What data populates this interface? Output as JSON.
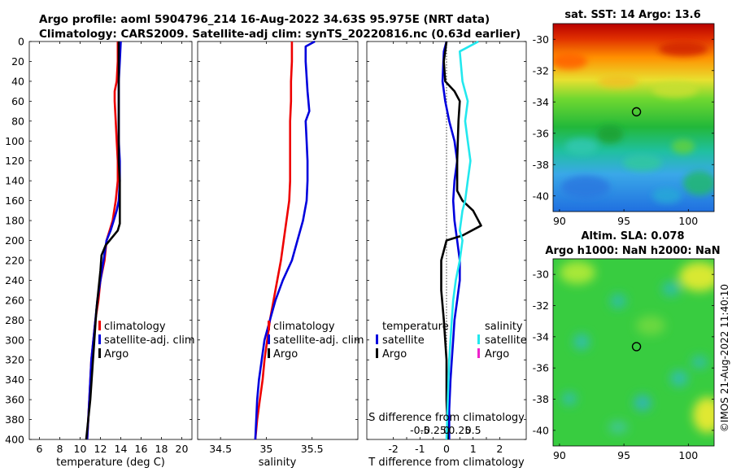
{
  "header": {
    "line1": "Argo profile: aoml 5904796_214 16-Aug-2022 34.63S 95.975E (NRT data)",
    "line2": "Climatology: CARS2009. Satellite-adj clim: synTS_20220816.nc (0.63d earlier)"
  },
  "colors": {
    "climatology": "#ee0000",
    "satellite": "#0000dd",
    "argo": "#000000",
    "salinity_satellite": "#22e8ee",
    "salinity_argo": "#ee22cc"
  },
  "depth_axis": {
    "ticks": [
      "0",
      "20",
      "40",
      "60",
      "80",
      "100",
      "120",
      "140",
      "160",
      "180",
      "200",
      "220",
      "240",
      "260",
      "280",
      "300",
      "320",
      "340",
      "360",
      "380",
      "400"
    ]
  },
  "chart_data": [
    {
      "id": "temperature",
      "type": "line",
      "xlabel": "temperature (deg C)",
      "ylabel": "depth",
      "xlim": [
        5,
        21
      ],
      "ylim": [
        400,
        0
      ],
      "xticks": [
        "6",
        "8",
        "10",
        "12",
        "14",
        "16",
        "18",
        "20"
      ],
      "series": [
        {
          "name": "climatology",
          "color_key": "climatology",
          "x": [
            13.7,
            13.7,
            13.6,
            13.4,
            13.4,
            13.5,
            13.6,
            13.7,
            13.7,
            13.5,
            13.2,
            12.9,
            12.6,
            12.4,
            12.0,
            11.8,
            11.5,
            11.3,
            11.1,
            10.9,
            10.7
          ],
          "y": [
            0,
            20,
            40,
            50,
            60,
            80,
            100,
            120,
            140,
            160,
            180,
            190,
            200,
            220,
            240,
            260,
            280,
            300,
            320,
            360,
            400
          ]
        },
        {
          "name": "satellite-adj. clim",
          "color_key": "satellite",
          "x": [
            14.0,
            13.9,
            13.8,
            13.8,
            13.8,
            13.8,
            13.9,
            13.9,
            13.8,
            13.6,
            13.3,
            13.0,
            12.6,
            12.3,
            12.0,
            11.7,
            11.5,
            11.3,
            11.1,
            10.9,
            10.7
          ],
          "y": [
            0,
            20,
            40,
            60,
            80,
            100,
            120,
            140,
            160,
            170,
            180,
            190,
            200,
            220,
            240,
            260,
            280,
            300,
            320,
            360,
            400
          ]
        },
        {
          "name": "Argo",
          "color_key": "argo",
          "x": [
            13.8,
            13.8,
            13.8,
            13.8,
            13.9,
            13.9,
            13.9,
            13.7,
            12.5,
            12.1,
            12.0,
            11.8,
            11.6,
            11.4,
            11.2,
            11.0,
            10.8,
            10.6
          ],
          "y": [
            0,
            40,
            80,
            120,
            140,
            160,
            183,
            190,
            205,
            215,
            230,
            250,
            270,
            300,
            330,
            360,
            380,
            400
          ]
        }
      ],
      "legend": [
        "climatology",
        "satellite-adj. clim",
        "Argo"
      ]
    },
    {
      "id": "salinity",
      "type": "line",
      "xlabel": "salinity",
      "xlim": [
        34.25,
        36.0
      ],
      "ylim": [
        400,
        0
      ],
      "xticks": [
        "34.5",
        "35",
        "35.5"
      ],
      "series": [
        {
          "name": "climatology",
          "color_key": "climatology",
          "x": [
            35.28,
            35.28,
            35.27,
            35.27,
            35.26,
            35.26,
            35.26,
            35.26,
            35.25,
            35.22,
            35.19,
            35.16,
            35.12,
            35.08,
            35.04,
            35.01,
            34.98,
            34.96,
            34.93,
            34.9,
            34.88
          ],
          "y": [
            0,
            20,
            40,
            60,
            80,
            100,
            120,
            140,
            160,
            180,
            200,
            220,
            240,
            260,
            280,
            300,
            320,
            340,
            360,
            380,
            400
          ]
        },
        {
          "name": "satellite-adj. clim",
          "color_key": "satellite",
          "x": [
            35.53,
            35.43,
            35.43,
            35.45,
            35.47,
            35.43,
            35.44,
            35.45,
            35.45,
            35.44,
            35.4,
            35.34,
            35.28,
            35.18,
            35.1,
            35.04,
            34.98,
            34.95,
            34.92,
            34.9,
            34.88
          ],
          "y": [
            0,
            5,
            20,
            50,
            70,
            80,
            100,
            120,
            140,
            160,
            180,
            200,
            220,
            240,
            260,
            280,
            300,
            320,
            340,
            360,
            400
          ]
        }
      ],
      "legend": [
        "climatology",
        "satellite-adj. clim",
        "Argo"
      ]
    },
    {
      "id": "difference",
      "type": "line",
      "xlabel": "T difference from climatology",
      "xlabel_top": "S difference from climatology",
      "xlim": [
        -3,
        3
      ],
      "ylim": [
        400,
        0
      ],
      "xticks": [
        "-2",
        "-1.5",
        "-1",
        "-0.5",
        "0",
        "0.5",
        "1",
        "1.5",
        "2"
      ],
      "xticks_s": [
        "-0.5",
        "-0.25",
        "0",
        "0.25",
        "0.5"
      ],
      "series": [
        {
          "name": "temperature satellite",
          "color_key": "satellite",
          "x": [
            0.0,
            -0.1,
            -0.15,
            -0.05,
            0.1,
            0.3,
            0.4,
            0.3,
            0.25,
            0.3,
            0.4,
            0.5,
            0.5,
            0.4,
            0.3,
            0.25,
            0.2,
            0.15,
            0.1,
            0.1
          ],
          "y": [
            0,
            10,
            40,
            60,
            80,
            100,
            120,
            140,
            160,
            180,
            200,
            220,
            240,
            260,
            280,
            300,
            320,
            340,
            370,
            400
          ]
        },
        {
          "name": "temperature Argo",
          "color_key": "argo",
          "x": [
            0.0,
            -0.1,
            -0.05,
            0.3,
            0.5,
            0.45,
            0.4,
            0.4,
            0.6,
            1.0,
            1.3,
            0.6,
            0.0,
            -0.2,
            -0.2,
            -0.1,
            0.0,
            0.0,
            0.05
          ],
          "y": [
            0,
            20,
            40,
            50,
            60,
            80,
            120,
            150,
            160,
            170,
            185,
            195,
            200,
            220,
            250,
            280,
            320,
            360,
            400
          ]
        },
        {
          "name": "salinity satellite",
          "color_key": "salinity_satellite",
          "x": [
            1.2,
            0.5,
            0.6,
            0.8,
            0.7,
            0.8,
            0.9,
            0.8,
            0.7,
            0.6,
            0.5,
            0.6,
            0.5,
            0.35,
            0.25,
            0.2,
            0.1,
            0.05,
            0.0
          ],
          "y": [
            0,
            10,
            40,
            60,
            80,
            100,
            120,
            140,
            160,
            170,
            190,
            200,
            220,
            240,
            260,
            280,
            320,
            360,
            400
          ]
        }
      ],
      "legend_temperature": {
        "title": "temperature",
        "items": [
          "satellite",
          "Argo"
        ]
      },
      "legend_salinity": {
        "title": "salinity",
        "items": [
          "satellite",
          "Argo"
        ]
      }
    }
  ],
  "maps": [
    {
      "id": "sst_map",
      "title": "sat. SST: 14 Argo: 13.6",
      "xticks": [
        "90",
        "95",
        "100"
      ],
      "yticks": [
        "-30",
        "-32",
        "-34",
        "-36",
        "-38",
        "-40"
      ],
      "xlim": [
        89.5,
        102
      ],
      "ylim": [
        -41,
        -29
      ],
      "marker": {
        "lon": 95.975,
        "lat": -34.63
      }
    },
    {
      "id": "sla_map",
      "title_line1": "Altim. SLA: 0.078",
      "title_line2": "Argo h1000: NaN h2000: NaN",
      "xticks": [
        "90",
        "95",
        "100"
      ],
      "yticks": [
        "-30",
        "-32",
        "-34",
        "-36",
        "-38",
        "-40"
      ],
      "xlim": [
        89.5,
        102
      ],
      "ylim": [
        -41,
        -29
      ],
      "marker": {
        "lon": 95.975,
        "lat": -34.63
      }
    }
  ],
  "watermark": "©IMOS 21-Aug-2022 11:40:10"
}
